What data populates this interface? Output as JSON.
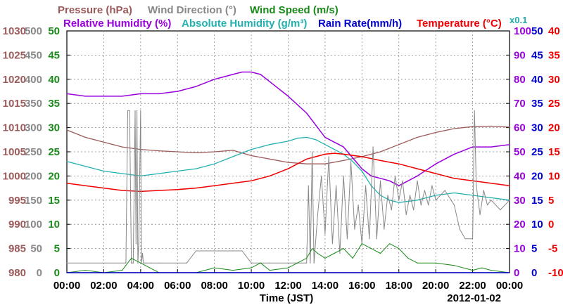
{
  "colors": {
    "pressure": "#9c5a5a",
    "wind_direction": "#888888",
    "wind_speed": "#1a8a1a",
    "relative_humidity": "#9900dd",
    "absolute_humidity": "#22b0b0",
    "rain_rate": "#0000cc",
    "temperature": "#ee0000",
    "grid": "#888888",
    "axis": "#000000"
  },
  "legend": {
    "pressure": "Pressure (hPa)",
    "wind_direction": "Wind Direction (°)",
    "wind_speed": "Wind Speed (m/s)",
    "relative_humidity": "Relative Humidity (%)",
    "absolute_humidity": "Absolute Humidity (g/m³)",
    "rain_rate": "Rain Rate(mm/h)",
    "temperature": "Temperature (°C)",
    "rain_scale_note": "x0.1"
  },
  "chart_data": {
    "type": "line",
    "xlabel": "Time (JST)",
    "date_label": "2012-01-02",
    "x_ticks": [
      "00:00",
      "02:00",
      "04:00",
      "06:00",
      "08:00",
      "10:00",
      "12:00",
      "14:00",
      "16:00",
      "18:00",
      "20:00",
      "22:00",
      "00:00"
    ],
    "xlim": [
      0,
      24
    ],
    "grid": true,
    "axes": {
      "pressure": {
        "ticks": [
          980,
          985,
          990,
          995,
          1000,
          1005,
          1010,
          1015,
          1020,
          1025,
          1030
        ],
        "ylim": [
          980,
          1030
        ]
      },
      "wind_direction": {
        "ticks": [
          0,
          50,
          100,
          150,
          200,
          250,
          300,
          350,
          400,
          450,
          500
        ],
        "ylim": [
          0,
          500
        ]
      },
      "wind_speed": {
        "ticks": [
          0,
          5,
          10,
          15,
          20,
          25,
          30,
          35,
          40,
          45,
          50
        ],
        "ylim": [
          0,
          50
        ]
      },
      "relative_humidity": {
        "ticks": [
          0,
          10,
          20,
          30,
          40,
          50,
          60,
          70,
          80,
          90,
          100
        ],
        "ylim": [
          0,
          100
        ]
      },
      "rain_rate": {
        "ticks": [
          0,
          5,
          10,
          15,
          20,
          25,
          30,
          35,
          40,
          45,
          50
        ],
        "ylim": [
          0,
          50
        ]
      },
      "temperature": {
        "ticks": [
          -10,
          -5,
          0,
          5,
          10,
          15,
          20,
          25,
          30,
          35,
          40
        ],
        "ylim": [
          -10,
          40
        ]
      }
    },
    "series": [
      {
        "name": "Pressure (hPa)",
        "key": "pressure",
        "axis": "pressure",
        "x": [
          0,
          1,
          2,
          3,
          4,
          5,
          6,
          7,
          8,
          9,
          10,
          11,
          12,
          13,
          14,
          15,
          16,
          17,
          18,
          19,
          20,
          21,
          22,
          23,
          24
        ],
        "y": [
          1009.5,
          1008,
          1007,
          1006,
          1005.5,
          1005.2,
          1005,
          1004.8,
          1005,
          1005.3,
          1004.2,
          1003.5,
          1002.8,
          1002.5,
          1002.5,
          1003.2,
          1004,
          1005,
          1006.5,
          1008,
          1009,
          1009.8,
          1010.2,
          1010.3,
          1010.1
        ]
      },
      {
        "name": "Relative Humidity (%)",
        "key": "relative_humidity",
        "axis": "relative_humidity",
        "x": [
          0,
          1,
          2,
          3,
          4,
          5,
          6,
          7,
          8,
          8.5,
          9,
          9.5,
          10,
          10.5,
          11,
          12,
          13,
          13.5,
          14,
          15,
          16,
          16.5,
          17,
          17.5,
          18,
          18.5,
          19,
          20,
          21,
          22,
          23,
          24
        ],
        "y": [
          74,
          73,
          73,
          73,
          74,
          74,
          75,
          77,
          80,
          81,
          82,
          83,
          83,
          82,
          79,
          73,
          66,
          61,
          56,
          52,
          43,
          40,
          39,
          38,
          36,
          38,
          40,
          45,
          49,
          52,
          52,
          53
        ]
      },
      {
        "name": "Absolute Humidity (g/m³)",
        "key": "absolute_humidity",
        "axis": "wind_speed",
        "x": [
          0,
          1,
          2,
          3,
          4,
          5,
          6,
          7,
          8,
          9,
          10,
          11,
          12,
          12.5,
          13,
          13.5,
          14,
          14.5,
          15,
          15.5,
          16,
          16.5,
          17,
          17.5,
          18,
          19,
          20,
          21,
          22,
          23,
          24
        ],
        "y": [
          23,
          22,
          21,
          20.5,
          20,
          20.5,
          21,
          21.5,
          22.5,
          24,
          25.5,
          26.5,
          27.2,
          27.8,
          28,
          27.5,
          26.5,
          25.5,
          24.5,
          23,
          21,
          18,
          16,
          15,
          14.5,
          15,
          16,
          16.5,
          16,
          15.5,
          15
        ]
      },
      {
        "name": "Temperature (°C)",
        "key": "temperature",
        "axis": "temperature",
        "x": [
          0,
          1,
          2,
          3,
          4,
          5,
          6,
          7,
          8,
          9,
          10,
          11,
          12,
          12.5,
          13,
          13.5,
          14,
          14.5,
          15,
          16,
          17,
          18,
          19,
          20,
          21,
          22,
          23,
          24
        ],
        "y": [
          8.5,
          8,
          7.5,
          7,
          6.8,
          7,
          7.2,
          7.5,
          8,
          8.5,
          9,
          10,
          11.5,
          12.5,
          13.5,
          14,
          14.5,
          14.7,
          14.5,
          14,
          13.2,
          12.5,
          11.5,
          10.5,
          9.5,
          9,
          8.5,
          8
        ]
      },
      {
        "name": "Wind Direction (°)",
        "key": "wind_direction",
        "axis": "wind_direction",
        "x": [
          0,
          3.2,
          3.3,
          3.4,
          3.5,
          3.6,
          3.7,
          3.75,
          3.8,
          3.85,
          3.9,
          4.0,
          4.05,
          4.1,
          4.15,
          4.2,
          4.3,
          4.6,
          5,
          6.5,
          7,
          8,
          9,
          9.5,
          10,
          11,
          12,
          12.5,
          13,
          13.1,
          13.2,
          13.3,
          13.4,
          13.6,
          13.8,
          14,
          14.2,
          14.4,
          14.6,
          14.8,
          15,
          15.2,
          15.4,
          15.6,
          15.8,
          16,
          16.2,
          16.4,
          16.6,
          16.8,
          17,
          17.2,
          17.4,
          17.6,
          17.8,
          18,
          18.2,
          18.4,
          18.6,
          18.8,
          19,
          19.2,
          19.4,
          19.6,
          19.8,
          20,
          20.5,
          21,
          21.3,
          21.6,
          22,
          22.1,
          22.2,
          22.3,
          22.4,
          22.6,
          22.8,
          23,
          23.5,
          24
        ],
        "y": [
          20,
          20,
          335,
          335,
          20,
          20,
          335,
          60,
          335,
          20,
          60,
          335,
          20,
          40,
          20,
          20,
          20,
          20,
          20,
          20,
          45,
          45,
          45,
          45,
          20,
          20,
          20,
          20,
          20,
          180,
          20,
          250,
          20,
          120,
          200,
          80,
          240,
          60,
          180,
          40,
          200,
          70,
          230,
          90,
          140,
          60,
          180,
          70,
          260,
          70,
          190,
          90,
          160,
          130,
          200,
          150,
          190,
          120,
          160,
          130,
          190,
          140,
          170,
          140,
          180,
          150,
          170,
          140,
          90,
          70,
          70,
          335,
          180,
          150,
          120,
          170,
          140,
          150,
          130,
          150
        ]
      },
      {
        "name": "Wind Speed (m/s)",
        "key": "wind_speed",
        "axis": "wind_speed",
        "x": [
          0,
          1,
          2,
          3,
          3.5,
          4,
          4.5,
          5,
          6,
          7,
          8,
          9,
          10,
          10.5,
          11,
          12,
          12.5,
          13,
          13.3,
          13.6,
          14,
          14.5,
          15,
          15.5,
          16,
          16.5,
          17,
          17.5,
          18,
          18.5,
          19,
          20,
          21,
          22,
          22.5,
          23,
          24
        ],
        "y": [
          0,
          0.5,
          0,
          0.5,
          3,
          2,
          1,
          0,
          0,
          0,
          1,
          0.5,
          1,
          2,
          0.5,
          1,
          2,
          3,
          5,
          4,
          3,
          4,
          5,
          3,
          6,
          5,
          4,
          6,
          5,
          3,
          2,
          2,
          1.5,
          0.5,
          1,
          0.5,
          0
        ]
      },
      {
        "name": "Rain Rate(mm/h)",
        "key": "rain_rate",
        "axis": "rain_rate",
        "x": [
          0,
          24
        ],
        "y": [
          0,
          0
        ]
      }
    ]
  }
}
